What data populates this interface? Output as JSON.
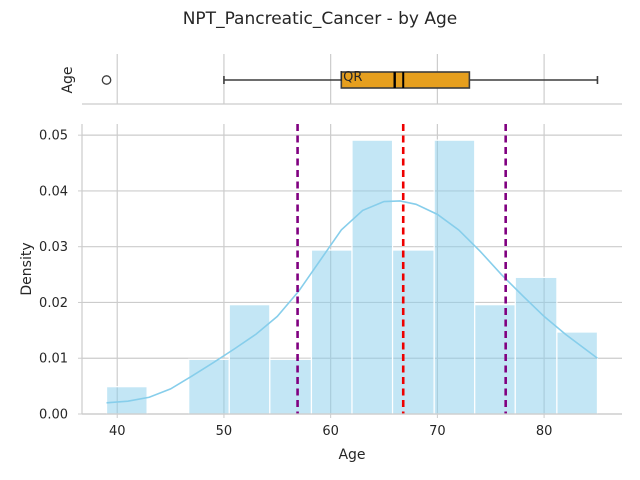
{
  "chart_data": [
    {
      "type": "box",
      "title": "NPT_Pancreatic_Cancer - by Age",
      "ylabel": "Age",
      "annotation": "IQR",
      "xlim": [
        36.7,
        87.3
      ],
      "whisker_low": 50,
      "q1": 61,
      "median": 66,
      "mean": 66.8,
      "q3": 73,
      "whisker_high": 85,
      "outliers": [
        39
      ],
      "colors": {
        "box": "#E69F1E",
        "median": "#000000",
        "whisker": "#3d3d3d"
      }
    },
    {
      "type": "histogram",
      "xlabel": "Age",
      "ylabel": "Density",
      "xlim": [
        36.7,
        87.3
      ],
      "ylim": [
        0,
        0.052
      ],
      "xticks": [
        40,
        50,
        60,
        70,
        80
      ],
      "yticks": [
        0.0,
        0.01,
        0.02,
        0.03,
        0.04,
        0.05
      ],
      "ytick_labels": [
        "0.00",
        "0.01",
        "0.02",
        "0.03",
        "0.04",
        "0.05"
      ],
      "bins": [
        {
          "x0": 39.0,
          "x1": 42.8,
          "density": 0.0049
        },
        {
          "x0": 42.8,
          "x1": 46.7,
          "density": 0.0
        },
        {
          "x0": 46.7,
          "x1": 50.5,
          "density": 0.0098
        },
        {
          "x0": 50.5,
          "x1": 54.3,
          "density": 0.0196
        },
        {
          "x0": 54.3,
          "x1": 58.2,
          "density": 0.0098
        },
        {
          "x0": 58.2,
          "x1": 62.0,
          "density": 0.0294
        },
        {
          "x0": 62.0,
          "x1": 65.8,
          "density": 0.0491
        },
        {
          "x0": 65.8,
          "x1": 69.7,
          "density": 0.0294
        },
        {
          "x0": 69.7,
          "x1": 73.5,
          "density": 0.0491
        },
        {
          "x0": 73.5,
          "x1": 77.3,
          "density": 0.0196
        },
        {
          "x0": 77.3,
          "x1": 81.2,
          "density": 0.0245
        },
        {
          "x0": 81.2,
          "x1": 85.0,
          "density": 0.0147
        }
      ],
      "kde": {
        "x": [
          39,
          41,
          43,
          45,
          47,
          49,
          51,
          53,
          55,
          57,
          59,
          61,
          63,
          65,
          66.5,
          68,
          70,
          72,
          74,
          76,
          78,
          80,
          82,
          85
        ],
        "y": [
          0.002,
          0.0023,
          0.003,
          0.0045,
          0.0068,
          0.0092,
          0.0117,
          0.0143,
          0.0175,
          0.022,
          0.0275,
          0.033,
          0.0365,
          0.0381,
          0.0382,
          0.0376,
          0.0358,
          0.033,
          0.0292,
          0.025,
          0.0212,
          0.0175,
          0.0143,
          0.01
        ]
      },
      "vlines": [
        {
          "x": 56.9,
          "color": "#800080",
          "role": "lower"
        },
        {
          "x": 66.8,
          "color": "#EE0000",
          "role": "mean"
        },
        {
          "x": 76.4,
          "color": "#800080",
          "role": "upper"
        }
      ],
      "colors": {
        "bar": "#87CEEB",
        "kde": "#87CEEB"
      }
    }
  ]
}
